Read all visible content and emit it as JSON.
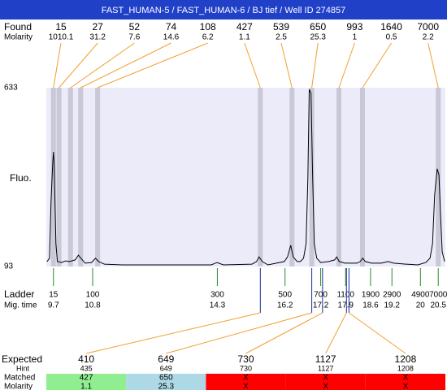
{
  "chart_data": {
    "type": "line",
    "title": "FAST_HUMAN-5 / FAST_HUMAN-6 / BJ tief / Well ID 274857",
    "y_label": "Fluo.",
    "ylim": [
      93,
      633
    ],
    "yticks": [
      93,
      633
    ],
    "xlim": [
      9.5,
      20.7
    ],
    "color": "#000000",
    "found_label": "Found",
    "found_molarity_label": "Molarity",
    "found": {
      "sizes": [
        15,
        27,
        52,
        74,
        108,
        427,
        539,
        650,
        993,
        1640,
        7000
      ],
      "molarities": [
        1010.1,
        31.2,
        7.6,
        14.6,
        6.2,
        1.1,
        2.5,
        25.3,
        1,
        0.5,
        2.2
      ]
    },
    "ladder_label": "Ladder",
    "mig_time_label": "Mig. time",
    "ladder": {
      "sizes": [
        15,
        100,
        300,
        500,
        700,
        1100,
        1900,
        2900,
        4900,
        7000
      ],
      "mig_times": [
        9.7,
        10.8,
        14.3,
        16.2,
        17.2,
        17.9,
        18.6,
        19.2,
        20,
        20.5
      ]
    },
    "x": [
      9.52,
      9.59,
      9.63,
      9.68,
      9.7,
      9.72,
      9.77,
      9.81,
      9.93,
      10.04,
      10.15,
      10.31,
      10.4,
      10.47,
      10.59,
      10.77,
      10.88,
      10.97,
      11.13,
      11.63,
      12.77,
      14.13,
      14.29,
      14.47,
      15.27,
      15.4,
      15.47,
      15.56,
      15.72,
      16.18,
      16.27,
      16.36,
      16.43,
      16.54,
      16.63,
      16.72,
      16.79,
      16.84,
      16.88,
      16.93,
      16.97,
      17.02,
      17.09,
      17.2,
      17.43,
      17.59,
      17.65,
      17.72,
      17.88,
      18.22,
      18.31,
      18.38,
      18.45,
      18.63,
      18.9,
      19.09,
      19.25,
      19.59,
      19.93,
      20.15,
      20.27,
      20.34,
      20.4,
      20.47,
      20.52,
      20.56,
      20.61,
      20.68
    ],
    "values": [
      108,
      118,
      284,
      407,
      439,
      407,
      162,
      108,
      105,
      110,
      108,
      113,
      127,
      118,
      103,
      105,
      118,
      108,
      100,
      98,
      98,
      98,
      105,
      98,
      100,
      108,
      122,
      108,
      98,
      108,
      122,
      157,
      122,
      108,
      108,
      118,
      162,
      358,
      628,
      616,
      383,
      162,
      118,
      105,
      108,
      113,
      122,
      108,
      103,
      103,
      108,
      118,
      108,
      103,
      103,
      108,
      103,
      100,
      98,
      105,
      118,
      162,
      309,
      388,
      370,
      260,
      137,
      108
    ],
    "table": {
      "expected_label": "Expected",
      "hint_label": "Hint",
      "matched_label": "Matched",
      "molarity_label": "Molarity",
      "expected": [
        410,
        649,
        730,
        1127,
        1208
      ],
      "hint": [
        435,
        649,
        730,
        1127,
        1208
      ],
      "matched": [
        427,
        650,
        "X",
        "X",
        "X"
      ],
      "molarity": [
        1.1,
        25.3,
        "X",
        "X",
        "X"
      ],
      "cell_colors": [
        "#90ee90",
        "#add8e6",
        "#ff0000",
        "#ff0000",
        "#ff0000"
      ]
    }
  }
}
